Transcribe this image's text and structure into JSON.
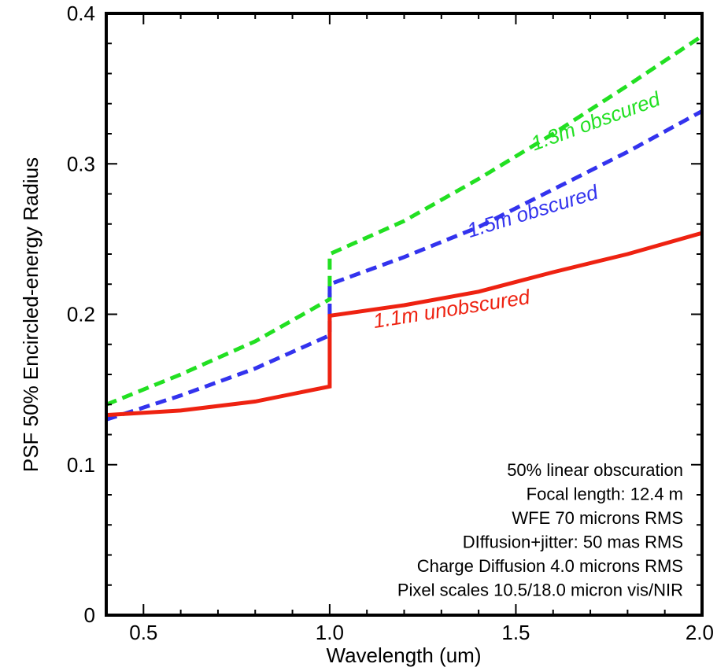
{
  "chart_data": {
    "type": "line",
    "title": "",
    "xlabel": "Wavelength (um)",
    "ylabel": "PSF 50% Encircled-energy Radius",
    "xlim": [
      0.4,
      2.0
    ],
    "ylim": [
      0,
      0.4
    ],
    "xticks": [
      0.5,
      1.0,
      1.5,
      2.0
    ],
    "xtick_labels": [
      "0.5",
      "1.0",
      "1.5",
      "2.0"
    ],
    "yticks": [
      0,
      0.1,
      0.2,
      0.3,
      0.4
    ],
    "ytick_labels": [
      "0",
      "0.1",
      "0.2",
      "0.3",
      "0.4"
    ],
    "grid": false,
    "series": [
      {
        "name": "1.3m obscured",
        "color": "#22e022",
        "style": "dashed",
        "x": [
          0.4,
          0.6,
          0.8,
          1.0,
          1.0,
          1.2,
          1.4,
          1.6,
          1.8,
          2.0
        ],
        "y": [
          0.14,
          0.16,
          0.182,
          0.21,
          0.24,
          0.262,
          0.29,
          0.32,
          0.352,
          0.385
        ]
      },
      {
        "name": "1.5m obscured",
        "color": "#3333ee",
        "style": "dashed",
        "x": [
          0.4,
          0.6,
          0.8,
          1.0,
          1.0,
          1.2,
          1.4,
          1.6,
          1.8,
          2.0
        ],
        "y": [
          0.13,
          0.146,
          0.164,
          0.186,
          0.22,
          0.238,
          0.258,
          0.283,
          0.308,
          0.335
        ]
      },
      {
        "name": "1.1m unobscured",
        "color": "#ee2211",
        "style": "solid",
        "x": [
          0.4,
          0.6,
          0.8,
          1.0,
          1.0,
          1.2,
          1.4,
          1.6,
          1.8,
          2.0
        ],
        "y": [
          0.133,
          0.136,
          0.142,
          0.152,
          0.199,
          0.206,
          0.215,
          0.228,
          0.24,
          0.254
        ]
      }
    ],
    "annotations": [
      "50% linear obscuration",
      "Focal length: 12.4 m",
      "WFE 70 microns RMS",
      "DIffusion+jitter: 50 mas RMS",
      "Charge Diffusion 4.0 microns RMS",
      "Pixel scales 10.5/18.0 micron vis/NIR"
    ]
  }
}
